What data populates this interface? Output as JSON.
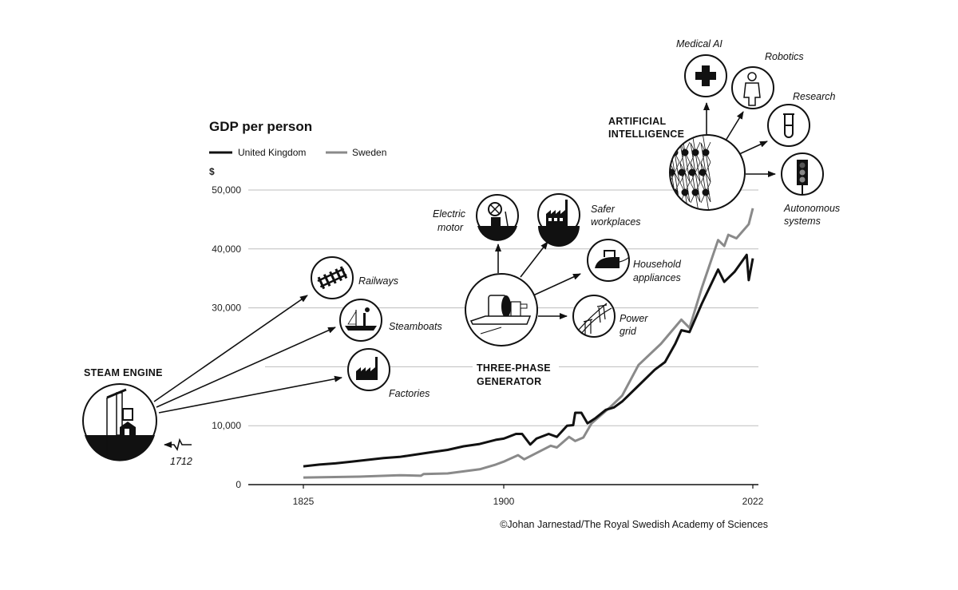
{
  "chart_data": {
    "type": "line",
    "title": "GDP per person",
    "ylabel": "$",
    "ylim": [
      0,
      50000
    ],
    "yticks": [
      0,
      10000,
      30000,
      40000,
      50000
    ],
    "ytick_labels": [
      "0",
      "10,000",
      "30,000",
      "40,000",
      "50,000"
    ],
    "gridlines": [
      10000,
      20000,
      30000,
      40000,
      50000
    ],
    "xticks": [
      1825,
      1900,
      2022
    ],
    "xtick_labels": [
      "1825",
      "1900",
      "2022"
    ],
    "grid": true,
    "legend": "top-left",
    "series": [
      {
        "name": "United Kingdom",
        "color": "#111111",
        "points": [
          [
            1825,
            3100
          ],
          [
            1831,
            3400
          ],
          [
            1837,
            3600
          ],
          [
            1843,
            3900
          ],
          [
            1849,
            4200
          ],
          [
            1855,
            4500
          ],
          [
            1861,
            4700
          ],
          [
            1867,
            5100
          ],
          [
            1873,
            5500
          ],
          [
            1879,
            5900
          ],
          [
            1885,
            6500
          ],
          [
            1891,
            6900
          ],
          [
            1897,
            7600
          ],
          [
            1900,
            7800
          ],
          [
            1906,
            8600
          ],
          [
            1909,
            8600
          ],
          [
            1913,
            6800
          ],
          [
            1916,
            7800
          ],
          [
            1922,
            8600
          ],
          [
            1926,
            8100
          ],
          [
            1931,
            10000
          ],
          [
            1934,
            10100
          ],
          [
            1935,
            12200
          ],
          [
            1938,
            12200
          ],
          [
            1941,
            10400
          ],
          [
            1945,
            11300
          ],
          [
            1950,
            12700
          ],
          [
            1954,
            13100
          ],
          [
            1958,
            14100
          ],
          [
            1966,
            16800
          ],
          [
            1974,
            19500
          ],
          [
            1979,
            20800
          ],
          [
            1984,
            23900
          ],
          [
            1987,
            26200
          ],
          [
            1991,
            25900
          ],
          [
            1997,
            30700
          ],
          [
            2005,
            36500
          ],
          [
            2008,
            34400
          ],
          [
            2013,
            36100
          ],
          [
            2019,
            39000
          ],
          [
            2020,
            34700
          ],
          [
            2022,
            38400
          ]
        ]
      },
      {
        "name": "Sweden",
        "color": "#8a8a8a",
        "points": [
          [
            1825,
            1200
          ],
          [
            1846,
            1350
          ],
          [
            1861,
            1600
          ],
          [
            1869,
            1500
          ],
          [
            1870,
            1800
          ],
          [
            1879,
            1900
          ],
          [
            1891,
            2600
          ],
          [
            1897,
            3400
          ],
          [
            1900,
            3900
          ],
          [
            1907,
            5000
          ],
          [
            1910,
            4300
          ],
          [
            1923,
            6600
          ],
          [
            1926,
            6300
          ],
          [
            1932,
            8100
          ],
          [
            1935,
            7400
          ],
          [
            1939,
            8000
          ],
          [
            1943,
            10400
          ],
          [
            1952,
            13100
          ],
          [
            1958,
            15100
          ],
          [
            1966,
            20300
          ],
          [
            1977,
            23900
          ],
          [
            1987,
            28000
          ],
          [
            1991,
            26600
          ],
          [
            1997,
            33400
          ],
          [
            2005,
            41500
          ],
          [
            2008,
            40500
          ],
          [
            2010,
            42400
          ],
          [
            2014,
            41800
          ],
          [
            2020,
            44200
          ],
          [
            2022,
            46900
          ]
        ]
      }
    ],
    "annotations": {
      "steam_engine": {
        "title": "STEAM ENGINE",
        "year": "1712",
        "effects": [
          "Railways",
          "Steamboats",
          "Factories"
        ]
      },
      "generator": {
        "title_line1": "THREE-PHASE",
        "title_line2": "GENERATOR",
        "effects": {
          "motor_1": "Electric",
          "motor_2": "motor",
          "safer_1": "Safer",
          "safer_2": "workplaces",
          "house_1": "Household",
          "house_2": "appliances",
          "grid_1": "Power",
          "grid_2": "grid"
        }
      },
      "ai": {
        "title_line1": "ARTIFICIAL",
        "title_line2": "INTELLIGENCE",
        "effects": {
          "medical": "Medical AI",
          "robotics": "Robotics",
          "research": "Research",
          "auto_1": "Autonomous",
          "auto_2": "systems"
        }
      }
    },
    "credit": "©Johan Jarnestad/The Royal Swedish Academy of Sciences"
  }
}
